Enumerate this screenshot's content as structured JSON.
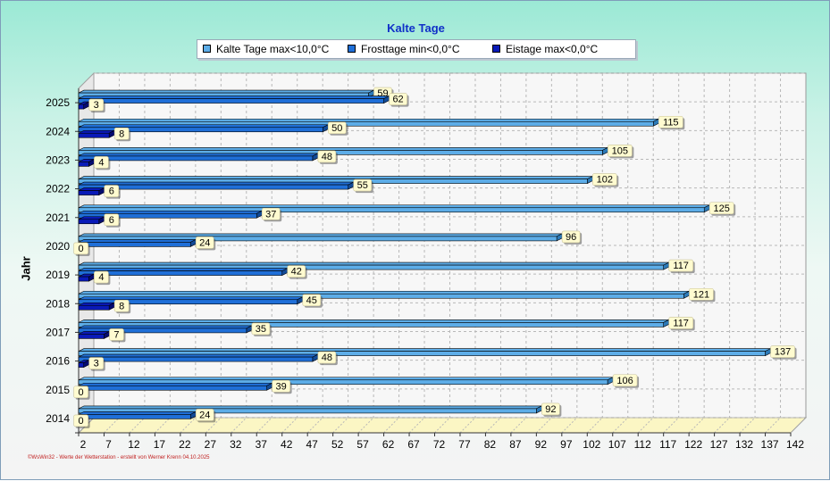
{
  "chart_data": {
    "type": "bar",
    "orientation": "horizontal",
    "title": "Kalte Tage",
    "ylabel": "Jahr",
    "xlim": [
      2,
      142
    ],
    "xticks": [
      2,
      7,
      12,
      17,
      22,
      27,
      32,
      37,
      42,
      47,
      52,
      57,
      62,
      67,
      72,
      77,
      82,
      87,
      92,
      97,
      102,
      107,
      112,
      117,
      122,
      127,
      132,
      137,
      142
    ],
    "categories": [
      "2025",
      "2024",
      "2023",
      "2022",
      "2021",
      "2020",
      "2019",
      "2018",
      "2017",
      "2016",
      "2015",
      "2014"
    ],
    "series": [
      {
        "name": "Kalte Tage max<10,0°C",
        "color": "#5dade8",
        "values": [
          59,
          115,
          105,
          102,
          125,
          96,
          117,
          121,
          117,
          137,
          106,
          92
        ]
      },
      {
        "name": "Frosttage min<0,0°C",
        "color": "#1f6fd8",
        "values": [
          62,
          50,
          48,
          55,
          37,
          24,
          42,
          45,
          35,
          48,
          39,
          24
        ]
      },
      {
        "name": "Eistage max<0,0°C",
        "color": "#0a1ab8",
        "values": [
          3,
          8,
          4,
          6,
          6,
          0,
          4,
          8,
          7,
          3,
          0,
          0
        ]
      }
    ],
    "grid": true,
    "legend_position": "top"
  },
  "footer": "©WsWin32 - Werte der Wetterstation - erstellt von Werner Krenn 04.10.2025"
}
